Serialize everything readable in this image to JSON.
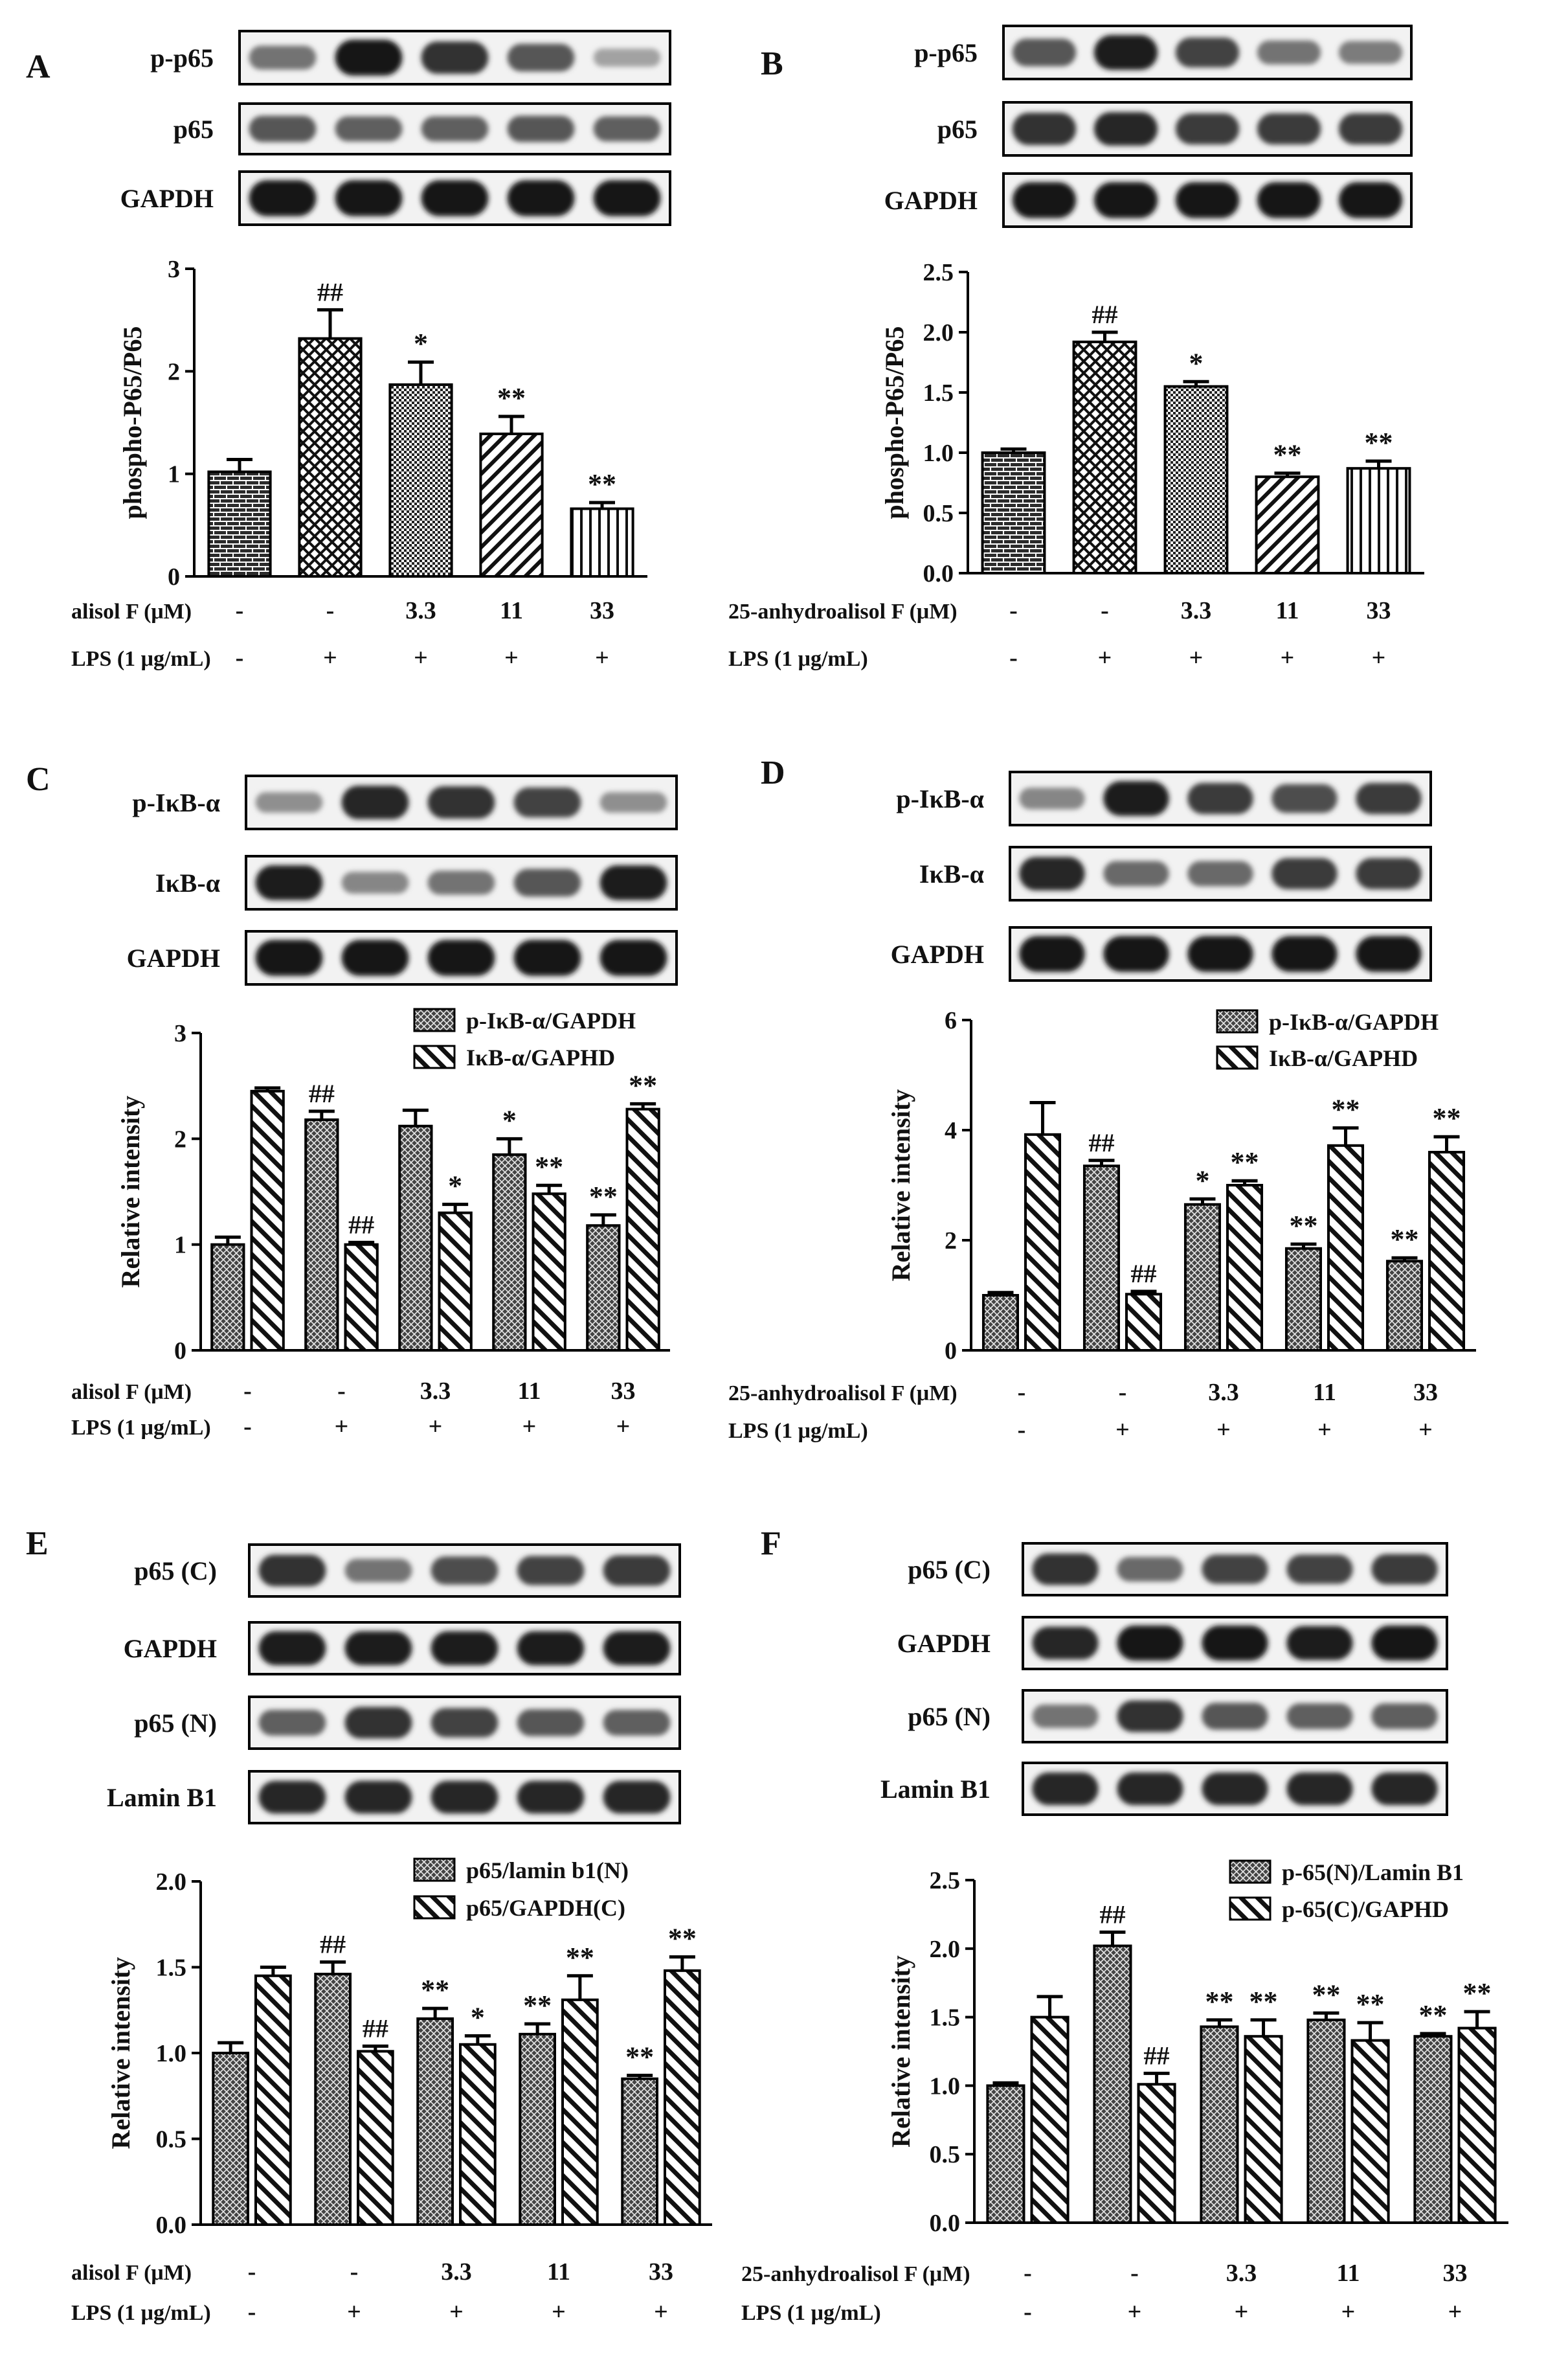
{
  "panels": [
    {
      "id": "A",
      "letter": "A",
      "blots": [
        {
          "label": "p-p65",
          "intensity": [
            0.45,
            0.95,
            0.8,
            0.6,
            0.2
          ]
        },
        {
          "label": "p65",
          "intensity": [
            0.6,
            0.55,
            0.55,
            0.6,
            0.55
          ]
        },
        {
          "label": "GAPDH",
          "intensity": [
            0.95,
            0.95,
            0.95,
            0.95,
            0.95
          ]
        }
      ],
      "chart_data": {
        "type": "bar",
        "ylabel": "phospho-P65/P65",
        "ylim": [
          0,
          3
        ],
        "yticks": [
          "0",
          "1",
          "2",
          "3"
        ],
        "series": [
          {
            "values": [
              1.02,
              2.32,
              1.87,
              1.39,
              0.66
            ],
            "errors": [
              0.12,
              0.28,
              0.22,
              0.17,
              0.06
            ],
            "pattern": "brick"
          }
        ],
        "annotations": [
          [
            "",
            "##",
            "*",
            "**",
            "**"
          ]
        ]
      },
      "conditions": [
        {
          "label": "alisol F (μM)",
          "values": [
            "-",
            "-",
            "3.3",
            "11",
            "33"
          ]
        },
        {
          "label": "LPS (1 μg/mL)",
          "values": [
            "-",
            "+",
            "+",
            "+",
            "+"
          ]
        }
      ]
    },
    {
      "id": "B",
      "letter": "B",
      "blots": [
        {
          "label": "p-p65",
          "intensity": [
            0.6,
            0.9,
            0.7,
            0.45,
            0.4
          ]
        },
        {
          "label": "p65",
          "intensity": [
            0.8,
            0.85,
            0.75,
            0.75,
            0.75
          ]
        },
        {
          "label": "GAPDH",
          "intensity": [
            0.95,
            0.95,
            0.95,
            0.95,
            0.95
          ]
        }
      ],
      "chart_data": {
        "type": "bar",
        "ylabel": "phospho-P65/P65",
        "ylim": [
          0,
          2.5
        ],
        "yticks": [
          "0.0",
          "0.5",
          "1.0",
          "1.5",
          "2.0",
          "2.5"
        ],
        "series": [
          {
            "values": [
              1.0,
              1.92,
              1.55,
              0.8,
              0.87
            ],
            "errors": [
              0.03,
              0.08,
              0.04,
              0.03,
              0.06
            ],
            "pattern": "brick"
          }
        ],
        "annotations": [
          [
            "",
            "##",
            "*",
            "**",
            "**"
          ]
        ]
      },
      "conditions": [
        {
          "label": "25-anhydroalisol F (μM)",
          "values": [
            "-",
            "-",
            "3.3",
            "11",
            "33"
          ]
        },
        {
          "label": "LPS (1 μg/mL)",
          "values": [
            "-",
            "+",
            "+",
            "+",
            "+"
          ]
        }
      ]
    },
    {
      "id": "C",
      "letter": "C",
      "blots": [
        {
          "label": "p-IκB-α",
          "intensity": [
            0.3,
            0.85,
            0.8,
            0.7,
            0.3
          ]
        },
        {
          "label": "IκB-α",
          "intensity": [
            0.9,
            0.35,
            0.45,
            0.6,
            0.9
          ]
        },
        {
          "label": "GAPDH",
          "intensity": [
            0.95,
            0.95,
            0.95,
            0.95,
            0.95
          ]
        }
      ],
      "chart_data": {
        "type": "bar",
        "ylabel": "Relative intensity",
        "ylim": [
          0,
          3
        ],
        "yticks": [
          "0",
          "1",
          "2",
          "3"
        ],
        "series": [
          {
            "name": "p-IκB-α/GAPDH",
            "values": [
              1.0,
              2.18,
              2.12,
              1.85,
              1.18
            ],
            "errors": [
              0.07,
              0.08,
              0.15,
              0.15,
              0.1
            ],
            "pattern": "cross"
          },
          {
            "name": "IκB-α/GAPHD",
            "values": [
              2.45,
              1.0,
              1.3,
              1.48,
              2.28
            ],
            "errors": [
              0.03,
              0.02,
              0.08,
              0.08,
              0.05
            ],
            "pattern": "hatch"
          }
        ],
        "annotations": [
          [
            "",
            "##",
            "",
            "*",
            "**"
          ],
          [
            "",
            "##",
            "*",
            "**",
            "**"
          ]
        ]
      },
      "conditions": [
        {
          "label": "alisol F (μM)",
          "values": [
            "-",
            "-",
            "3.3",
            "11",
            "33"
          ]
        },
        {
          "label": "LPS (1 μg/mL)",
          "values": [
            "-",
            "+",
            "+",
            "+",
            "+"
          ]
        }
      ]
    },
    {
      "id": "D",
      "letter": "D",
      "blots": [
        {
          "label": "p-IκB-α",
          "intensity": [
            0.35,
            0.9,
            0.75,
            0.65,
            0.75
          ]
        },
        {
          "label": "IκB-α",
          "intensity": [
            0.85,
            0.5,
            0.5,
            0.75,
            0.75
          ]
        },
        {
          "label": "GAPDH",
          "intensity": [
            0.95,
            0.95,
            0.95,
            0.95,
            0.95
          ]
        }
      ],
      "chart_data": {
        "type": "bar",
        "ylabel": "Relative intensity",
        "ylim": [
          0,
          6
        ],
        "yticks": [
          "0",
          "2",
          "4",
          "6"
        ],
        "series": [
          {
            "name": "p-IκB-α/GAPDH",
            "values": [
              1.0,
              3.35,
              2.65,
              1.85,
              1.62
            ],
            "errors": [
              0.05,
              0.1,
              0.1,
              0.08,
              0.06
            ],
            "pattern": "cross"
          },
          {
            "name": "IκB-α/GAPHD",
            "values": [
              3.92,
              1.02,
              3.0,
              3.72,
              3.6
            ],
            "errors": [
              0.58,
              0.05,
              0.08,
              0.32,
              0.28
            ],
            "pattern": "hatch"
          }
        ],
        "annotations": [
          [
            "",
            "##",
            "*",
            "**",
            "**"
          ],
          [
            "",
            "##",
            "**",
            "**",
            "**"
          ]
        ]
      },
      "conditions": [
        {
          "label": "25-anhydroalisol F (μM)",
          "values": [
            "-",
            "-",
            "3.3",
            "11",
            "33"
          ]
        },
        {
          "label": "LPS (1 μg/mL)",
          "values": [
            "-",
            "+",
            "+",
            "+",
            "+"
          ]
        }
      ]
    },
    {
      "id": "E",
      "letter": "E",
      "blots": [
        {
          "label": "p65 (C)",
          "intensity": [
            0.8,
            0.45,
            0.65,
            0.7,
            0.75
          ]
        },
        {
          "label": "GAPDH",
          "intensity": [
            0.9,
            0.9,
            0.9,
            0.9,
            0.9
          ]
        },
        {
          "label": "p65 (N)",
          "intensity": [
            0.55,
            0.8,
            0.7,
            0.6,
            0.55
          ]
        },
        {
          "label": "Lamin B1",
          "intensity": [
            0.85,
            0.85,
            0.85,
            0.85,
            0.85
          ]
        }
      ],
      "chart_data": {
        "type": "bar",
        "ylabel": "Relative intensity",
        "ylim": [
          0,
          2
        ],
        "yticks": [
          "0.0",
          "0.5",
          "1.0",
          "1.5",
          "2.0"
        ],
        "series": [
          {
            "name": "p65/lamin b1(N)",
            "values": [
              1.0,
              1.46,
              1.2,
              1.11,
              0.85
            ],
            "errors": [
              0.06,
              0.07,
              0.06,
              0.06,
              0.02
            ],
            "pattern": "cross"
          },
          {
            "name": "p65/GAPDH(C)",
            "values": [
              1.45,
              1.01,
              1.05,
              1.31,
              1.48
            ],
            "errors": [
              0.05,
              0.03,
              0.05,
              0.14,
              0.08
            ],
            "pattern": "hatch"
          }
        ],
        "annotations": [
          [
            "",
            "##",
            "**",
            "**",
            "**"
          ],
          [
            "",
            "##",
            "*",
            "**",
            "**"
          ]
        ]
      },
      "conditions": [
        {
          "label": "alisol F (μM)",
          "values": [
            "-",
            "-",
            "3.3",
            "11",
            "33"
          ]
        },
        {
          "label": "LPS (1 μg/mL)",
          "values": [
            "-",
            "+",
            "+",
            "+",
            "+"
          ]
        }
      ]
    },
    {
      "id": "F",
      "letter": "F",
      "blots": [
        {
          "label": "p65 (C)",
          "intensity": [
            0.8,
            0.5,
            0.7,
            0.7,
            0.75
          ]
        },
        {
          "label": "GAPDH",
          "intensity": [
            0.85,
            0.95,
            0.95,
            0.9,
            0.95
          ]
        },
        {
          "label": "p65 (N)",
          "intensity": [
            0.45,
            0.8,
            0.6,
            0.55,
            0.55
          ]
        },
        {
          "label": "Lamin B1",
          "intensity": [
            0.85,
            0.85,
            0.85,
            0.85,
            0.85
          ]
        }
      ],
      "chart_data": {
        "type": "bar",
        "ylabel": "Relative intensity",
        "ylim": [
          0,
          2.5
        ],
        "yticks": [
          "0.0",
          "0.5",
          "1.0",
          "1.5",
          "2.0",
          "2.5"
        ],
        "series": [
          {
            "name": "p-65(N)/Lamin B1",
            "values": [
              1.0,
              2.02,
              1.43,
              1.48,
              1.36
            ],
            "errors": [
              0.02,
              0.1,
              0.05,
              0.05,
              0.02
            ],
            "pattern": "cross"
          },
          {
            "name": "p-65(C)/GAPHD",
            "values": [
              1.5,
              1.01,
              1.36,
              1.33,
              1.42
            ],
            "errors": [
              0.15,
              0.08,
              0.12,
              0.13,
              0.12
            ],
            "pattern": "hatch"
          }
        ],
        "annotations": [
          [
            "",
            "##",
            "**",
            "**",
            "**"
          ],
          [
            "",
            "##",
            "**",
            "**",
            "**"
          ]
        ]
      },
      "conditions": [
        {
          "label": "25-anhydroalisol F (μM)",
          "values": [
            "-",
            "-",
            "3.3",
            "11",
            "33"
          ]
        },
        {
          "label": "LPS (1 μg/mL)",
          "values": [
            "-",
            "+",
            "+",
            "+",
            "+"
          ]
        }
      ]
    }
  ]
}
